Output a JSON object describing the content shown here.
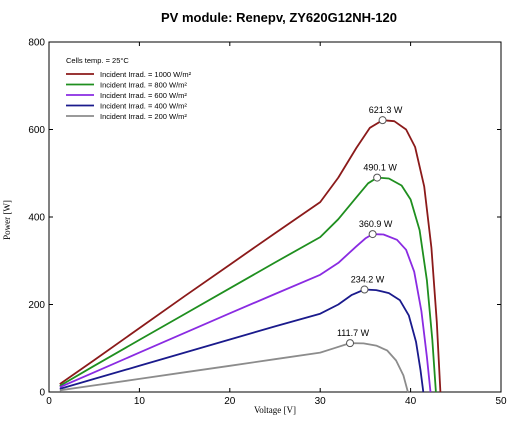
{
  "chart_data": {
    "type": "line",
    "title": "PV module:  Renepv,  ZY620G12NH-120",
    "xlabel": "Voltage [V]",
    "ylabel": "Power [W]",
    "xlim": [
      0,
      50
    ],
    "ylim": [
      0,
      800
    ],
    "xticks": [
      0,
      10,
      20,
      30,
      40,
      50
    ],
    "yticks": [
      0,
      200,
      400,
      600,
      800
    ],
    "grid": false,
    "legend_position": "top-left",
    "legend_title": "Cells temp. = 25°C",
    "series": [
      {
        "name": "Incident Irrad. = 1000 W/m²",
        "color": "#8b1a1a",
        "peak": {
          "x": 36.9,
          "y": 621.3,
          "label": "621.3 W"
        },
        "points": [
          [
            1.2,
            18
          ],
          [
            5,
            73
          ],
          [
            10,
            146
          ],
          [
            15,
            219
          ],
          [
            20,
            291
          ],
          [
            25,
            363
          ],
          [
            30,
            434
          ],
          [
            32,
            490
          ],
          [
            34,
            558
          ],
          [
            35.5,
            604
          ],
          [
            36.9,
            621.3
          ],
          [
            38.2,
            619
          ],
          [
            39.5,
            600
          ],
          [
            40.5,
            560
          ],
          [
            41.5,
            470
          ],
          [
            42.3,
            330
          ],
          [
            42.9,
            160
          ],
          [
            43.3,
            0
          ]
        ]
      },
      {
        "name": "Incident Irrad. = 800 W/m²",
        "color": "#1f8f1f",
        "peak": {
          "x": 36.3,
          "y": 490.1,
          "label": "490.1 W"
        },
        "points": [
          [
            1.2,
            14
          ],
          [
            5,
            60
          ],
          [
            10,
            119
          ],
          [
            15,
            178
          ],
          [
            20,
            237
          ],
          [
            25,
            296
          ],
          [
            30,
            354
          ],
          [
            32,
            395
          ],
          [
            34,
            445
          ],
          [
            35.3,
            477
          ],
          [
            36.3,
            490.1
          ],
          [
            37.6,
            488
          ],
          [
            39,
            472
          ],
          [
            40,
            440
          ],
          [
            41,
            370
          ],
          [
            41.8,
            255
          ],
          [
            42.4,
            120
          ],
          [
            42.8,
            0
          ]
        ]
      },
      {
        "name": "Incident Irrad. = 600 W/m²",
        "color": "#8a2be2",
        "peak": {
          "x": 35.8,
          "y": 360.9,
          "label": "360.9 W"
        },
        "points": [
          [
            1.2,
            11
          ],
          [
            5,
            45
          ],
          [
            10,
            90
          ],
          [
            15,
            135
          ],
          [
            20,
            180
          ],
          [
            25,
            224
          ],
          [
            30,
            268
          ],
          [
            32,
            295
          ],
          [
            34,
            333
          ],
          [
            35,
            351
          ],
          [
            35.8,
            360.9
          ],
          [
            37,
            360
          ],
          [
            38.5,
            348
          ],
          [
            39.5,
            325
          ],
          [
            40.4,
            275
          ],
          [
            41.2,
            185
          ],
          [
            41.8,
            80
          ],
          [
            42.2,
            0
          ]
        ]
      },
      {
        "name": "Incident Irrad. = 400 W/m²",
        "color": "#1a1a8c",
        "peak": {
          "x": 34.9,
          "y": 234.2,
          "label": "234.2 W"
        },
        "points": [
          [
            1.2,
            7
          ],
          [
            5,
            30
          ],
          [
            10,
            60
          ],
          [
            15,
            90
          ],
          [
            20,
            120
          ],
          [
            25,
            150
          ],
          [
            30,
            179
          ],
          [
            32,
            200
          ],
          [
            33.5,
            222
          ],
          [
            34.9,
            234.2
          ],
          [
            36.2,
            233
          ],
          [
            37.6,
            226
          ],
          [
            38.8,
            210
          ],
          [
            39.8,
            175
          ],
          [
            40.6,
            115
          ],
          [
            41.1,
            50
          ],
          [
            41.4,
            0
          ]
        ]
      },
      {
        "name": "Incident Irrad. = 200 W/m²",
        "color": "#8c8c8c",
        "peak": {
          "x": 33.3,
          "y": 111.7,
          "label": "111.7 W"
        },
        "points": [
          [
            1.2,
            4
          ],
          [
            5,
            15
          ],
          [
            10,
            30
          ],
          [
            15,
            45
          ],
          [
            20,
            60
          ],
          [
            25,
            75
          ],
          [
            30,
            90
          ],
          [
            31.5,
            100
          ],
          [
            33.3,
            111.7
          ],
          [
            34.8,
            111
          ],
          [
            36.2,
            106
          ],
          [
            37.4,
            95
          ],
          [
            38.4,
            72
          ],
          [
            39.2,
            38
          ],
          [
            39.7,
            0
          ]
        ]
      }
    ]
  }
}
